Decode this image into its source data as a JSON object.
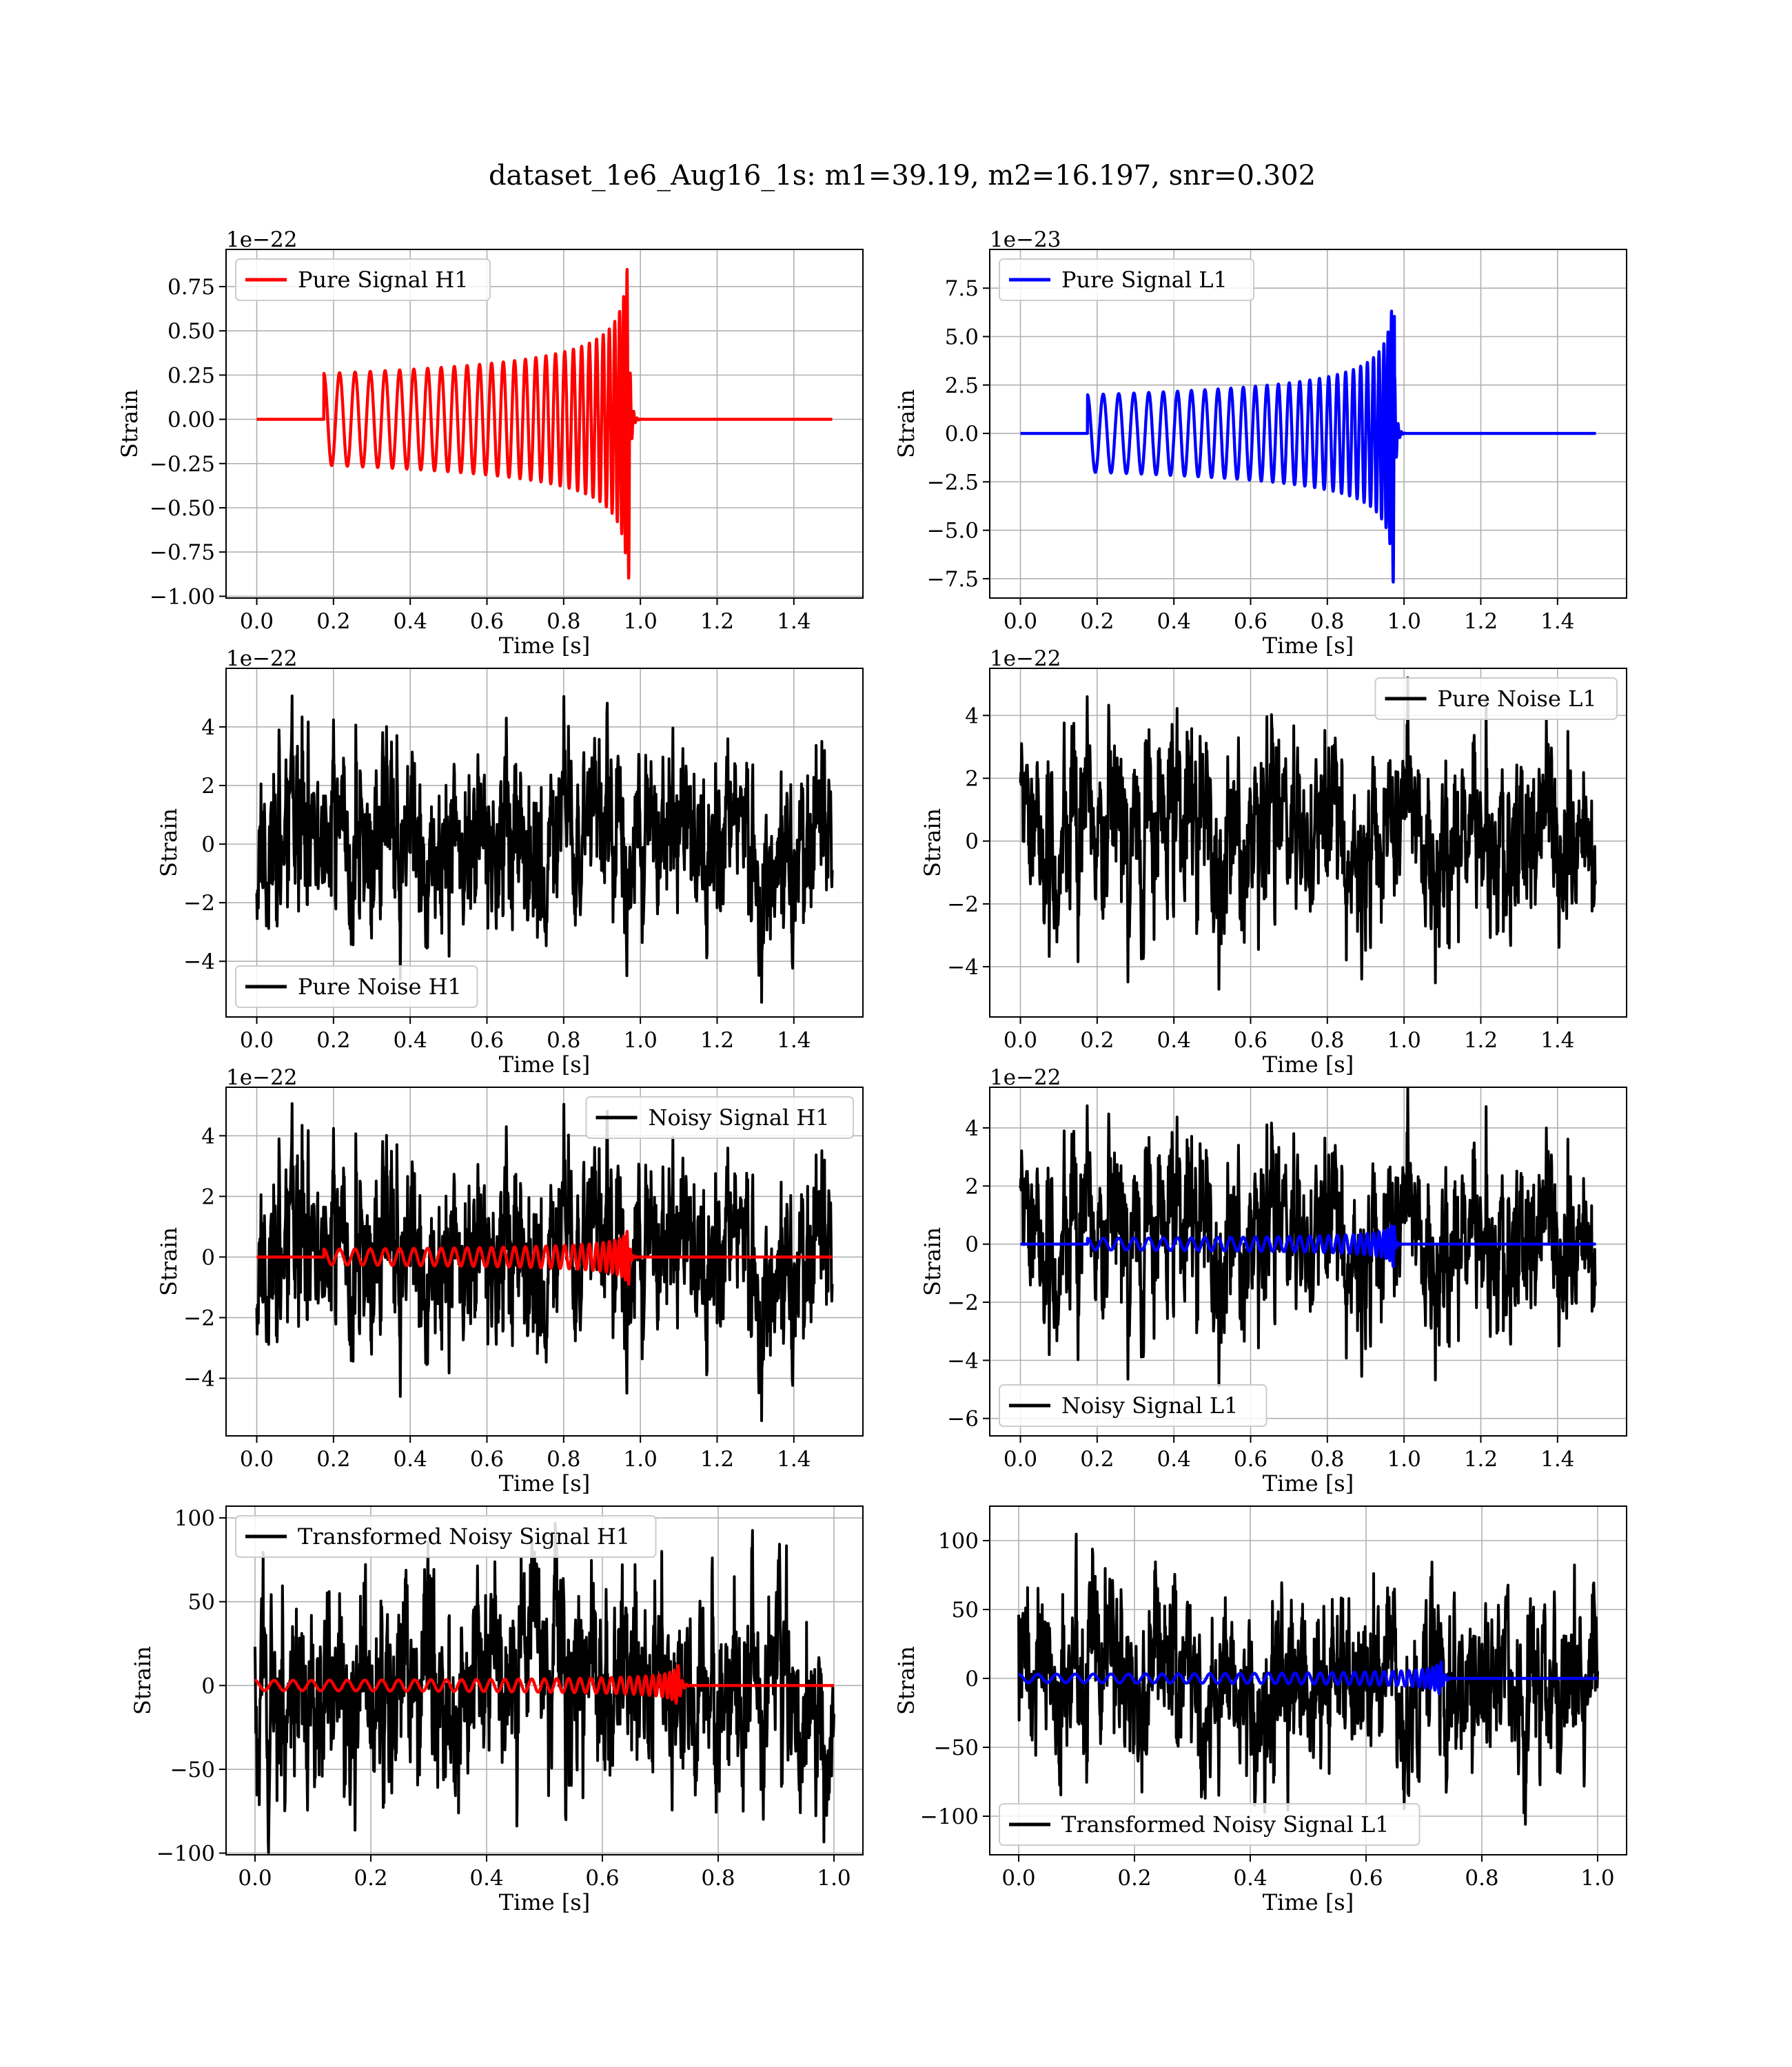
{
  "title": "dataset_1e6_Aug16_1s: m1=39.19, m2=16.197, snr=0.302",
  "colors": {
    "signal_h1": "#ff0000",
    "signal_l1": "#0000ff",
    "noise": "#000000",
    "grid": "#b0b0b0"
  },
  "chart_data": [
    {
      "type": "line",
      "panel": "top-left",
      "xlabel": "Time [s]",
      "ylabel": "Strain",
      "offset_text": "1e−22",
      "xlim": [
        -0.08,
        1.58
      ],
      "ylim": [
        -1.01,
        0.96
      ],
      "xticks": [
        0.0,
        0.2,
        0.4,
        0.6,
        0.8,
        1.0,
        1.2,
        1.4
      ],
      "xtick_labels": [
        "0.0",
        "0.2",
        "0.4",
        "0.6",
        "0.8",
        "1.0",
        "1.2",
        "1.4"
      ],
      "yticks": [
        -1.0,
        -0.75,
        -0.5,
        -0.25,
        0.0,
        0.25,
        0.5,
        0.75
      ],
      "ytick_labels": [
        "−1.00",
        "−0.75",
        "−0.50",
        "−0.25",
        "0.00",
        "0.25",
        "0.50",
        "0.75"
      ],
      "legend": {
        "position": "upper-left",
        "entries": [
          {
            "label": "Pure Signal H1",
            "color": "#ff0000"
          }
        ]
      },
      "series": [
        {
          "name": "Pure Signal H1",
          "color": "#ff0000",
          "kind": "chirp",
          "x_start": 0.0,
          "x_end": 1.5,
          "t_start": 0.175,
          "t_merge": 0.972,
          "amp_start": 0.26,
          "amp_peak": 0.9,
          "f_start": 24,
          "f_end": 115
        }
      ]
    },
    {
      "type": "line",
      "panel": "top-right",
      "xlabel": "Time [s]",
      "ylabel": "Strain",
      "offset_text": "1e−23",
      "xlim": [
        -0.08,
        1.58
      ],
      "ylim": [
        -8.5,
        9.5
      ],
      "xticks": [
        0.0,
        0.2,
        0.4,
        0.6,
        0.8,
        1.0,
        1.2,
        1.4
      ],
      "xtick_labels": [
        "0.0",
        "0.2",
        "0.4",
        "0.6",
        "0.8",
        "1.0",
        "1.2",
        "1.4"
      ],
      "yticks": [
        -7.5,
        -5.0,
        -2.5,
        0.0,
        2.5,
        5.0,
        7.5
      ],
      "ytick_labels": [
        "−7.5",
        "−5.0",
        "−2.5",
        "0.0",
        "2.5",
        "5.0",
        "7.5"
      ],
      "legend": {
        "position": "upper-left",
        "entries": [
          {
            "label": "Pure Signal L1",
            "color": "#0000ff"
          }
        ]
      },
      "series": [
        {
          "name": "Pure Signal L1",
          "color": "#0000ff",
          "kind": "chirp",
          "x_start": 0.0,
          "x_end": 1.5,
          "t_start": 0.175,
          "t_merge": 0.975,
          "amp_start": 2.0,
          "amp_peak": 8.3,
          "f_start": 24,
          "f_end": 115
        }
      ]
    },
    {
      "type": "line",
      "panel": "second-left",
      "xlabel": "Time [s]",
      "ylabel": "Strain",
      "offset_text": "1e−22",
      "xlim": [
        -0.08,
        1.58
      ],
      "ylim": [
        -5.9,
        6.0
      ],
      "xticks": [
        0.0,
        0.2,
        0.4,
        0.6,
        0.8,
        1.0,
        1.2,
        1.4
      ],
      "xtick_labels": [
        "0.0",
        "0.2",
        "0.4",
        "0.6",
        "0.8",
        "1.0",
        "1.2",
        "1.4"
      ],
      "yticks": [
        -4,
        -2,
        0,
        2,
        4
      ],
      "ytick_labels": [
        "−4",
        "−2",
        "0",
        "2",
        "4"
      ],
      "legend": {
        "position": "lower-left",
        "entries": [
          {
            "label": "Pure Noise H1",
            "color": "#000000"
          }
        ]
      },
      "series": [
        {
          "name": "Pure Noise H1",
          "color": "#000000",
          "kind": "noise",
          "x_start": 0.0,
          "x_end": 1.5,
          "amplitude": 1.5,
          "clip": 5.4,
          "seed": 11
        }
      ]
    },
    {
      "type": "line",
      "panel": "second-right",
      "xlabel": "Time [s]",
      "ylabel": "Strain",
      "offset_text": "1e−22",
      "xlim": [
        -0.08,
        1.58
      ],
      "ylim": [
        -5.6,
        5.5
      ],
      "xticks": [
        0.0,
        0.2,
        0.4,
        0.6,
        0.8,
        1.0,
        1.2,
        1.4
      ],
      "xtick_labels": [
        "0.0",
        "0.2",
        "0.4",
        "0.6",
        "0.8",
        "1.0",
        "1.2",
        "1.4"
      ],
      "yticks": [
        -4,
        -2,
        0,
        2,
        4
      ],
      "ytick_labels": [
        "−4",
        "−2",
        "0",
        "2",
        "4"
      ],
      "legend": {
        "position": "upper-right",
        "entries": [
          {
            "label": "Pure Noise L1",
            "color": "#000000"
          }
        ]
      },
      "series": [
        {
          "name": "Pure Noise L1",
          "color": "#000000",
          "kind": "noise",
          "x_start": 0.0,
          "x_end": 1.5,
          "amplitude": 1.4,
          "clip": 5.2,
          "seed": 23
        }
      ]
    },
    {
      "type": "line",
      "panel": "third-left",
      "xlabel": "Time [s]",
      "ylabel": "Strain",
      "offset_text": "1e−22",
      "xlim": [
        -0.08,
        1.58
      ],
      "ylim": [
        -5.9,
        5.6
      ],
      "xticks": [
        0.0,
        0.2,
        0.4,
        0.6,
        0.8,
        1.0,
        1.2,
        1.4
      ],
      "xtick_labels": [
        "0.0",
        "0.2",
        "0.4",
        "0.6",
        "0.8",
        "1.0",
        "1.2",
        "1.4"
      ],
      "yticks": [
        -4,
        -2,
        0,
        2,
        4
      ],
      "ytick_labels": [
        "−4",
        "−2",
        "0",
        "2",
        "4"
      ],
      "legend": {
        "position": "upper-right",
        "entries": [
          {
            "label": "Noisy Signal H1",
            "color": "#000000"
          }
        ]
      },
      "series": [
        {
          "name": "Noisy Signal H1",
          "color": "#000000",
          "kind": "noise",
          "x_start": 0.0,
          "x_end": 1.5,
          "amplitude": 1.5,
          "clip": 5.4,
          "seed": 11
        },
        {
          "name": "Pure Signal H1",
          "color": "#ff0000",
          "kind": "chirp",
          "x_start": 0.0,
          "x_end": 1.5,
          "t_start": 0.175,
          "t_merge": 0.972,
          "amp_start": 0.26,
          "amp_peak": 0.9,
          "f_start": 24,
          "f_end": 115
        }
      ]
    },
    {
      "type": "line",
      "panel": "third-right",
      "xlabel": "Time [s]",
      "ylabel": "Strain",
      "offset_text": "1e−22",
      "xlim": [
        -0.08,
        1.58
      ],
      "ylim": [
        -6.6,
        5.4
      ],
      "xticks": [
        0.0,
        0.2,
        0.4,
        0.6,
        0.8,
        1.0,
        1.2,
        1.4
      ],
      "xtick_labels": [
        "0.0",
        "0.2",
        "0.4",
        "0.6",
        "0.8",
        "1.0",
        "1.2",
        "1.4"
      ],
      "yticks": [
        -6,
        -4,
        -2,
        0,
        2,
        4
      ],
      "ytick_labels": [
        "−6",
        "−4",
        "−2",
        "0",
        "2",
        "4"
      ],
      "legend": {
        "position": "lower-left",
        "entries": [
          {
            "label": "Noisy Signal L1",
            "color": "#000000"
          }
        ]
      },
      "series": [
        {
          "name": "Noisy Signal L1",
          "color": "#000000",
          "kind": "noise",
          "x_start": 0.0,
          "x_end": 1.5,
          "amplitude": 1.45,
          "clip": 5.8,
          "seed": 23
        },
        {
          "name": "Pure Signal L1",
          "color": "#0000ff",
          "kind": "chirp",
          "x_start": 0.0,
          "x_end": 1.5,
          "t_start": 0.175,
          "t_merge": 0.975,
          "amp_start": 0.2,
          "amp_peak": 0.85,
          "f_start": 24,
          "f_end": 115
        }
      ]
    },
    {
      "type": "line",
      "panel": "bottom-left",
      "xlabel": "Time [s]",
      "ylabel": "Strain",
      "offset_text": "",
      "xlim": [
        -0.05,
        1.05
      ],
      "ylim": [
        -101,
        107
      ],
      "xticks": [
        0.0,
        0.2,
        0.4,
        0.6,
        0.8,
        1.0
      ],
      "xtick_labels": [
        "0.0",
        "0.2",
        "0.4",
        "0.6",
        "0.8",
        "1.0"
      ],
      "yticks": [
        -100,
        -50,
        0,
        50,
        100
      ],
      "ytick_labels": [
        "−100",
        "−50",
        "0",
        "50",
        "100"
      ],
      "legend": {
        "position": "upper-left",
        "entries": [
          {
            "label": "Transformed Noisy Signal H1",
            "color": "#000000"
          }
        ]
      },
      "series": [
        {
          "name": "Transformed Noisy Signal H1",
          "color": "#000000",
          "kind": "noise",
          "x_start": 0.0,
          "x_end": 1.0,
          "amplitude": 30,
          "clip": 100,
          "seed": 37
        },
        {
          "name": "",
          "color": "#ff0000",
          "kind": "chirp",
          "x_start": 0.0,
          "x_end": 1.0,
          "t_start": 0.0,
          "t_merge": 0.732,
          "amp_start": 3,
          "amp_peak": 25,
          "f_start": 30,
          "f_end": 140
        }
      ]
    },
    {
      "type": "line",
      "panel": "bottom-right",
      "xlabel": "Time [s]",
      "ylabel": "Strain",
      "offset_text": "",
      "xlim": [
        -0.05,
        1.05
      ],
      "ylim": [
        -128,
        125
      ],
      "xticks": [
        0.0,
        0.2,
        0.4,
        0.6,
        0.8,
        1.0
      ],
      "xtick_labels": [
        "0.0",
        "0.2",
        "0.4",
        "0.6",
        "0.8",
        "1.0"
      ],
      "yticks": [
        -100,
        -50,
        0,
        50,
        100
      ],
      "ytick_labels": [
        "−100",
        "−50",
        "0",
        "50",
        "100"
      ],
      "legend": {
        "position": "lower-left",
        "entries": [
          {
            "label": "Transformed Noisy Signal L1",
            "color": "#000000"
          }
        ]
      },
      "series": [
        {
          "name": "Transformed Noisy Signal L1",
          "color": "#000000",
          "kind": "noise",
          "x_start": 0.0,
          "x_end": 1.0,
          "amplitude": 30,
          "clip": 124,
          "seed": 53
        },
        {
          "name": "",
          "color": "#0000ff",
          "kind": "chirp",
          "x_start": 0.0,
          "x_end": 1.0,
          "t_start": 0.0,
          "t_merge": 0.73,
          "amp_start": 3,
          "amp_peak": 25,
          "f_start": 30,
          "f_end": 140
        }
      ]
    }
  ]
}
